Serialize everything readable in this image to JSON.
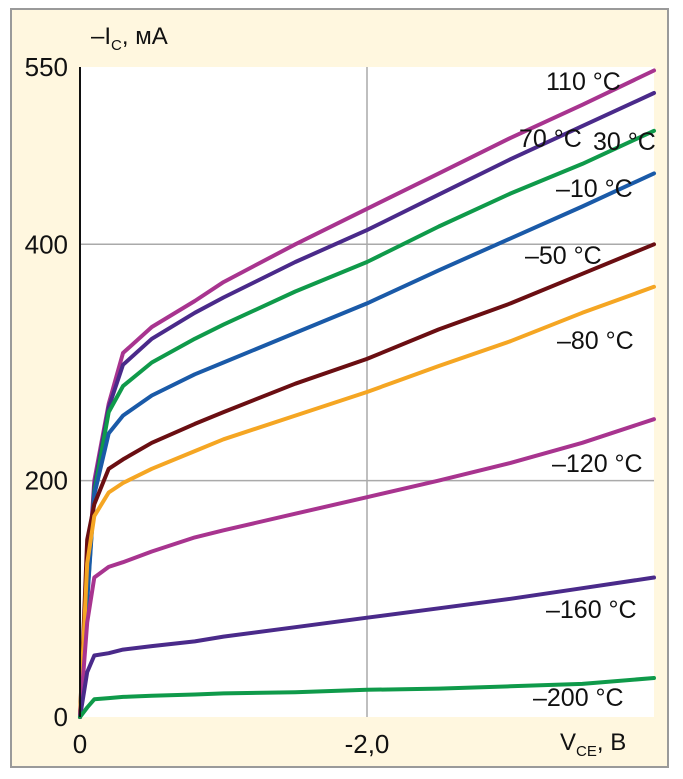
{
  "chart_data": {
    "type": "line",
    "title": "",
    "ylabel_prefix": "–I",
    "ylabel_sub": "C",
    "ylabel_suffix": ", мА",
    "xlabel_prefix": "V",
    "xlabel_sub": "CE",
    "xlabel_suffix": ", B",
    "xlim": [
      0,
      -4.0
    ],
    "ylim": [
      0,
      550
    ],
    "x_ticks": [
      {
        "value": 0,
        "label": "0"
      },
      {
        "value": -2.0,
        "label": "-2,0"
      }
    ],
    "y_ticks": [
      {
        "value": 0,
        "label": "0"
      },
      {
        "value": 200,
        "label": "200"
      },
      {
        "value": 400,
        "label": "400"
      },
      {
        "value": 550,
        "label": "550"
      }
    ],
    "grid": true,
    "series": [
      {
        "name": "110 °C",
        "color": "#a8348f",
        "x": [
          0,
          -0.05,
          -0.1,
          -0.2,
          -0.3,
          -0.5,
          -0.8,
          -1.0,
          -1.5,
          -2.0,
          -2.5,
          -3.0,
          -3.5,
          -4.0
        ],
        "y": [
          0,
          110,
          200,
          265,
          308,
          330,
          352,
          368,
          400,
          430,
          460,
          490,
          518,
          547
        ]
      },
      {
        "name": "70 °C",
        "color": "#4a2a8a",
        "x": [
          0,
          -0.05,
          -0.1,
          -0.2,
          -0.3,
          -0.5,
          -0.8,
          -1.0,
          -1.5,
          -2.0,
          -2.5,
          -3.0,
          -3.5,
          -4.0
        ],
        "y": [
          0,
          105,
          195,
          262,
          298,
          320,
          342,
          355,
          385,
          412,
          442,
          472,
          500,
          528
        ]
      },
      {
        "name": "30 °C",
        "color": "#0f9a4a",
        "x": [
          0,
          -0.05,
          -0.1,
          -0.2,
          -0.3,
          -0.5,
          -0.8,
          -1.0,
          -1.5,
          -2.0,
          -2.5,
          -3.0,
          -3.5,
          -4.0
        ],
        "y": [
          0,
          100,
          190,
          258,
          280,
          300,
          320,
          332,
          360,
          385,
          415,
          443,
          468,
          496
        ]
      },
      {
        "name": "–10 °C",
        "color": "#1a5aa8",
        "x": [
          0,
          -0.05,
          -0.1,
          -0.2,
          -0.3,
          -0.5,
          -0.8,
          -1.0,
          -1.5,
          -2.0,
          -2.5,
          -3.0,
          -3.5,
          -4.0
        ],
        "y": [
          0,
          98,
          188,
          240,
          255,
          272,
          290,
          300,
          325,
          350,
          378,
          405,
          432,
          460
        ]
      },
      {
        "name": "–50 °C",
        "color": "#6a0e12",
        "x": [
          0,
          -0.05,
          -0.1,
          -0.2,
          -0.3,
          -0.5,
          -0.8,
          -1.0,
          -1.5,
          -2.0,
          -2.5,
          -3.0,
          -3.5,
          -4.0
        ],
        "y": [
          0,
          150,
          180,
          210,
          218,
          232,
          248,
          258,
          282,
          303,
          328,
          350,
          375,
          400
        ]
      },
      {
        "name": "–80 °C",
        "color": "#f5a623",
        "x": [
          0,
          -0.05,
          -0.1,
          -0.2,
          -0.3,
          -0.5,
          -0.8,
          -1.0,
          -1.5,
          -2.0,
          -2.5,
          -3.0,
          -3.5,
          -4.0
        ],
        "y": [
          0,
          130,
          170,
          190,
          198,
          210,
          225,
          235,
          255,
          275,
          297,
          318,
          342,
          364
        ]
      },
      {
        "name": "–120 °C",
        "color": "#a8348f",
        "x": [
          0,
          -0.05,
          -0.1,
          -0.2,
          -0.3,
          -0.5,
          -0.8,
          -1.0,
          -1.5,
          -2.0,
          -2.5,
          -3.0,
          -3.5,
          -4.0
        ],
        "y": [
          0,
          80,
          118,
          127,
          131,
          140,
          152,
          158,
          172,
          186,
          200,
          215,
          232,
          252
        ]
      },
      {
        "name": "–160 °C",
        "color": "#4a2a8a",
        "x": [
          0,
          -0.05,
          -0.1,
          -0.2,
          -0.3,
          -0.5,
          -0.8,
          -1.0,
          -1.5,
          -2.0,
          -2.5,
          -3.0,
          -3.5,
          -4.0
        ],
        "y": [
          0,
          38,
          52,
          54,
          57,
          60,
          64,
          68,
          76,
          84,
          92,
          100,
          109,
          118
        ]
      },
      {
        "name": "–200 °C",
        "color": "#0f9a4a",
        "x": [
          0,
          -0.05,
          -0.1,
          -0.2,
          -0.3,
          -0.5,
          -0.8,
          -1.0,
          -1.5,
          -2.0,
          -2.5,
          -3.0,
          -3.5,
          -4.0
        ],
        "y": [
          0,
          8,
          15,
          16,
          17,
          18,
          19,
          20,
          21,
          23,
          24,
          26,
          28,
          33
        ]
      }
    ]
  }
}
